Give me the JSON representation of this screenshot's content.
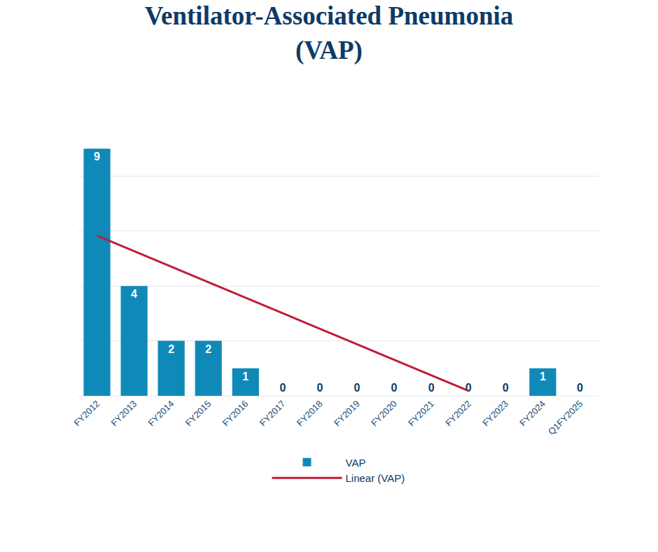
{
  "chart_data": {
    "type": "bar",
    "title": "Ventilator-Associated Pneumonia\n(VAP)",
    "categories": [
      "FY2012",
      "FY2013",
      "FY2014",
      "FY2015",
      "FY2016",
      "FY2017",
      "FY2018",
      "FY2019",
      "FY2020",
      "FY2021",
      "FY2022",
      "FY2023",
      "FY2024",
      "Q1FY2025"
    ],
    "series": [
      {
        "name": "VAP",
        "type": "bar",
        "color": "#0f8ab8",
        "values": [
          9,
          4,
          2,
          2,
          1,
          0,
          0,
          0,
          0,
          0,
          0,
          0,
          1,
          0
        ]
      },
      {
        "name": "Linear (VAP)",
        "type": "line",
        "color": "#c11c3a",
        "values": [
          5.83,
          5.27,
          4.7,
          4.14,
          3.57,
          3.01,
          2.44,
          1.88,
          1.31,
          0.75,
          0.18,
          null,
          null,
          null
        ]
      }
    ],
    "ylim": [
      0,
      10
    ],
    "yticks": [
      0,
      2,
      4,
      6,
      8,
      10
    ],
    "grid": true,
    "legend": "bottom",
    "data_labels": true,
    "tick_labels": "x"
  }
}
